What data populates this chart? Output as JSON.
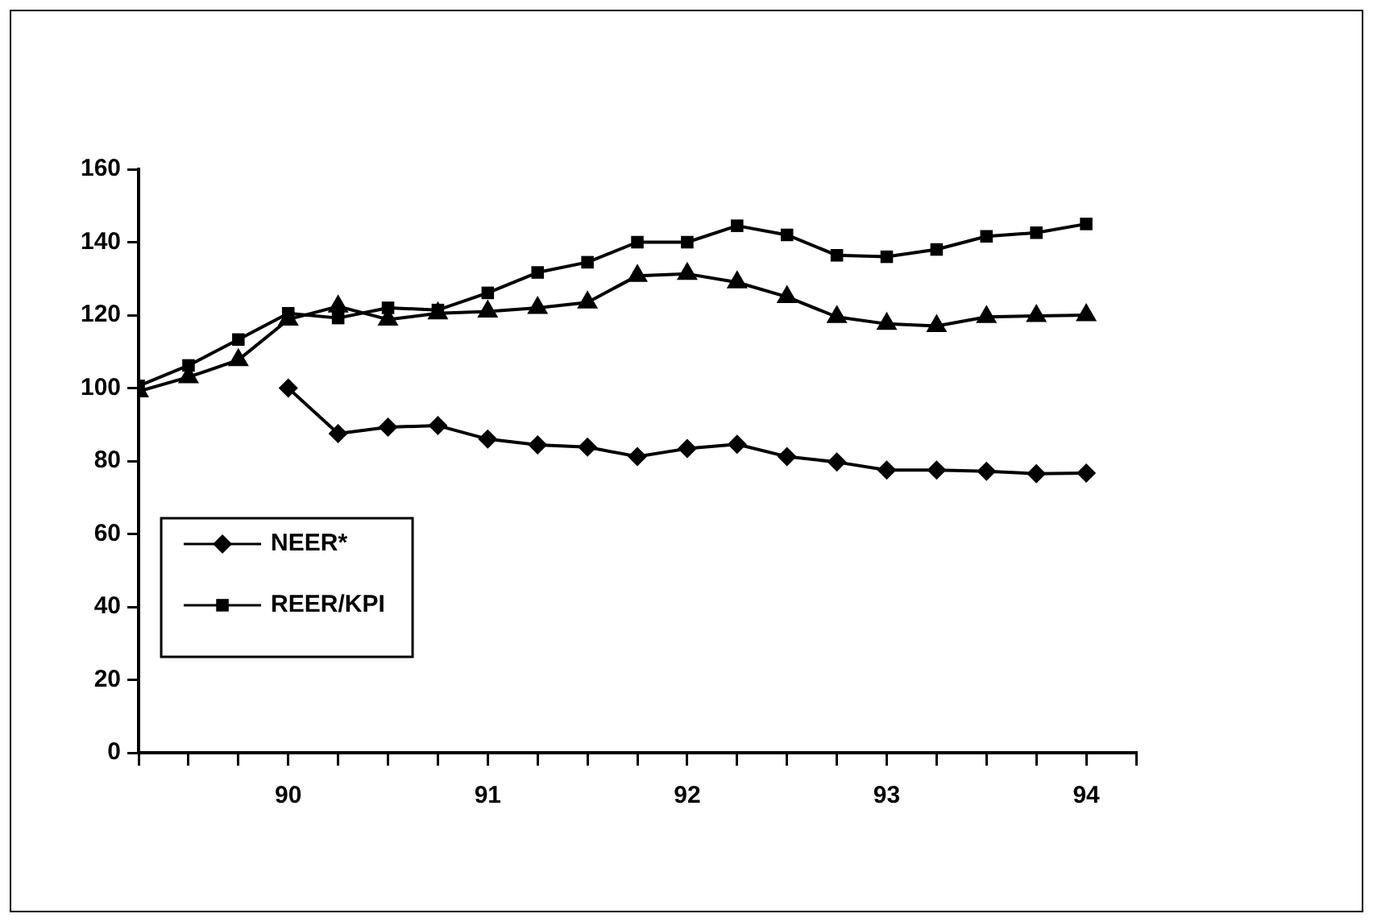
{
  "chart_data": {
    "type": "line",
    "x": [
      89.25,
      89.5,
      89.75,
      90,
      90.25,
      90.5,
      90.75,
      91,
      91.25,
      91.5,
      91.75,
      92,
      92.25,
      92.5,
      92.75,
      93,
      93.25,
      93.5,
      93.75,
      94
    ],
    "xlim": [
      89.25,
      94.25
    ],
    "xticks": [
      {
        "value": 89.25,
        "label": null
      },
      {
        "value": 89.5,
        "label": null
      },
      {
        "value": 89.75,
        "label": null
      },
      90,
      {
        "value": 90.25,
        "label": null
      },
      {
        "value": 90.5,
        "label": null
      },
      {
        "value": 90.75,
        "label": null
      },
      91,
      {
        "value": 91.25,
        "label": null
      },
      {
        "value": 91.5,
        "label": null
      },
      {
        "value": 91.75,
        "label": null
      },
      92,
      {
        "value": 92.25,
        "label": null
      },
      {
        "value": 92.5,
        "label": null
      },
      {
        "value": 92.75,
        "label": null
      },
      93,
      {
        "value": 93.25,
        "label": null
      },
      {
        "value": 93.5,
        "label": null
      },
      {
        "value": 93.75,
        "label": null
      },
      94,
      {
        "value": 94.25,
        "label": null
      }
    ],
    "ylim": [
      0,
      160
    ],
    "yticks": [
      0,
      20,
      40,
      60,
      80,
      100,
      120,
      140,
      160
    ],
    "grid": false,
    "legend": "left",
    "line_style": "solid",
    "series": [
      {
        "name": "NEER*",
        "color": "#000000",
        "marker": "diamond",
        "values": [
          null,
          null,
          null,
          100,
          87.5,
          89.3,
          89.7,
          86,
          84.4,
          83.8,
          81.2,
          83.4,
          84.6,
          81.2,
          79.7,
          77.5,
          77.5,
          77.2,
          76.5,
          76.7
        ]
      },
      {
        "name": "REER/KPI",
        "color": "#000000",
        "marker": "square",
        "values": [
          100.6,
          106.2,
          113.3,
          120.5,
          119.2,
          122,
          121.4,
          126.1,
          131.7,
          134.5,
          140,
          140,
          144.5,
          142,
          136.4,
          136,
          138,
          141.6,
          142.6,
          145
        ]
      },
      {
        "color": "#000000",
        "marker": "triangle",
        "values": [
          99.1,
          103,
          107.7,
          118.8,
          122.4,
          118.8,
          120.5,
          121,
          122,
          123.5,
          130.8,
          131.3,
          129,
          125,
          119.5,
          117.6,
          117,
          119.5,
          119.8,
          120
        ]
      }
    ]
  }
}
